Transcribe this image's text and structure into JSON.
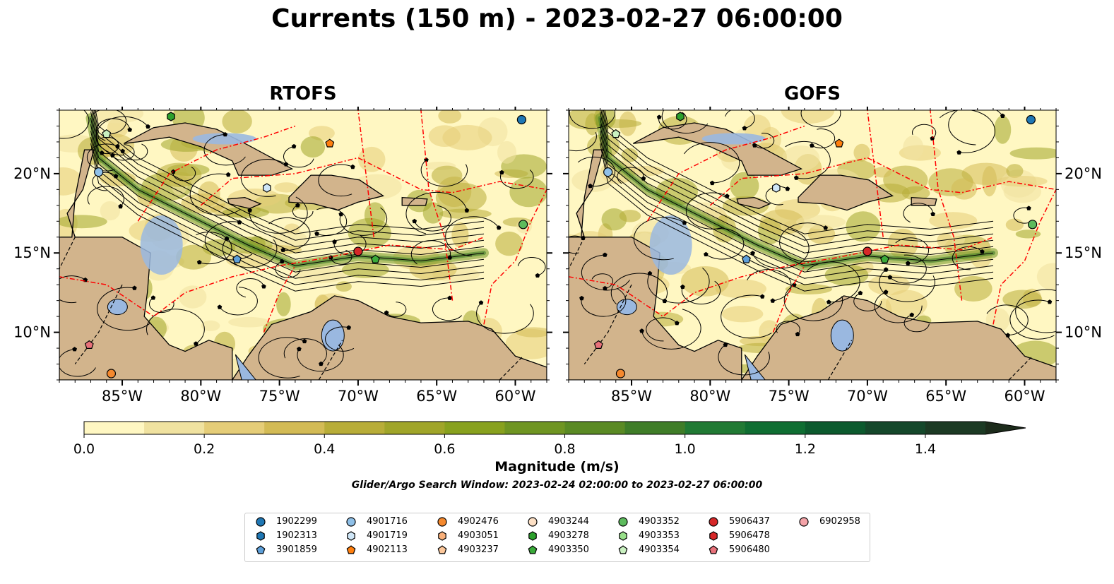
{
  "title": "Currents (150 m) - 2023-02-27 06:00:00",
  "panels": [
    {
      "title": "RTOFS",
      "lon_ticks": [
        "85°W",
        "80°W",
        "75°W",
        "70°W",
        "65°W",
        "60°W"
      ],
      "lat_ticks": [
        "20°N",
        "15°N",
        "10°N"
      ]
    },
    {
      "title": "GOFS",
      "lon_ticks": [
        "85°W",
        "80°W",
        "75°W",
        "70°W",
        "65°W",
        "60°W"
      ],
      "lat_ticks": [
        "20°N",
        "15°N",
        "10°N"
      ]
    }
  ],
  "colorbar": {
    "label": "Magnitude (m/s)",
    "ticks": [
      "0.0",
      "0.2",
      "0.4",
      "0.6",
      "0.8",
      "1.0",
      "1.2",
      "1.4"
    ],
    "colors": [
      "#fff7c2",
      "#f0e2a0",
      "#e5cd78",
      "#d3bb55",
      "#b8ad38",
      "#a0a529",
      "#88a11e",
      "#6f9522",
      "#5a8a24",
      "#3f7d28",
      "#217a34",
      "#0f6e32",
      "#0c5a2e",
      "#15482b",
      "#1c3a24",
      "#1c2b1b"
    ]
  },
  "search_window": "Glider/Argo Search Window: 2023-02-24 02:00:00 to 2023-02-27 06:00:00",
  "colors": {
    "land": "#d2b48c",
    "lake": "#9ab8e0",
    "current_low": "#fff7c2",
    "eez": "#ff0000"
  },
  "legend": [
    {
      "id": "1902299",
      "color": "#1f77b4",
      "marker": "circle"
    },
    {
      "id": "1902313",
      "color": "#1f77b4",
      "marker": "hexagon"
    },
    {
      "id": "3901859",
      "color": "#5d9fd9",
      "marker": "pentagon"
    },
    {
      "id": "4901716",
      "color": "#8fc0e8",
      "marker": "circle"
    },
    {
      "id": "4901719",
      "color": "#cfe6f7",
      "marker": "hexagon"
    },
    {
      "id": "4902113",
      "color": "#ff7f0e",
      "marker": "pentagon"
    },
    {
      "id": "4902476",
      "color": "#f5892e",
      "marker": "circle"
    },
    {
      "id": "4903051",
      "color": "#f9b07a",
      "marker": "hexagon"
    },
    {
      "id": "4903237",
      "color": "#fcc79a",
      "marker": "pentagon"
    },
    {
      "id": "4903244",
      "color": "#fde0c5",
      "marker": "circle"
    },
    {
      "id": "4903278",
      "color": "#2ca02c",
      "marker": "hexagon"
    },
    {
      "id": "4903350",
      "color": "#3aaa3a",
      "marker": "pentagon"
    },
    {
      "id": "4903352",
      "color": "#5dbb5d",
      "marker": "circle"
    },
    {
      "id": "4903353",
      "color": "#98df8a",
      "marker": "hexagon"
    },
    {
      "id": "4903354",
      "color": "#c9f0c0",
      "marker": "pentagon"
    },
    {
      "id": "5906437",
      "color": "#d62728",
      "marker": "circle"
    },
    {
      "id": "5906478",
      "color": "#d62728",
      "marker": "hexagon"
    },
    {
      "id": "5906480",
      "color": "#e8717a",
      "marker": "pentagon"
    },
    {
      "id": "6902958",
      "color": "#f4a3a8",
      "marker": "circle"
    }
  ],
  "chart_data": [
    {
      "type": "heatmap",
      "title": "RTOFS",
      "variable": "current magnitude at 150 m",
      "units": "m/s",
      "xlim": [
        -89,
        -58
      ],
      "ylim": [
        7,
        24
      ],
      "color_range": [
        0.0,
        1.5
      ],
      "floats": [
        {
          "id": "1902299",
          "lon": -59.6,
          "lat": 23.4
        },
        {
          "id": "3901859",
          "lon": -77.7,
          "lat": 14.6
        },
        {
          "id": "4901716",
          "lon": -86.5,
          "lat": 20.1
        },
        {
          "id": "4901719",
          "lon": -75.8,
          "lat": 19.1
        },
        {
          "id": "4902113",
          "lon": -71.8,
          "lat": 21.9
        },
        {
          "id": "4902476",
          "lon": -85.7,
          "lat": 7.4
        },
        {
          "id": "4903278",
          "lon": -81.9,
          "lat": 23.6
        },
        {
          "id": "4903350",
          "lon": -68.9,
          "lat": 14.6
        },
        {
          "id": "4903352",
          "lon": -59.5,
          "lat": 16.8
        },
        {
          "id": "4903354",
          "lon": -86.0,
          "lat": 22.5
        },
        {
          "id": "5906437",
          "lon": -70.0,
          "lat": 15.1
        },
        {
          "id": "5906480",
          "lon": -87.1,
          "lat": 9.2
        }
      ]
    },
    {
      "type": "heatmap",
      "title": "GOFS",
      "variable": "current magnitude at 150 m",
      "units": "m/s",
      "xlim": [
        -89,
        -58
      ],
      "ylim": [
        7,
        24
      ],
      "color_range": [
        0.0,
        1.5
      ],
      "floats": [
        {
          "id": "1902299",
          "lon": -59.6,
          "lat": 23.4
        },
        {
          "id": "3901859",
          "lon": -77.7,
          "lat": 14.6
        },
        {
          "id": "4901716",
          "lon": -86.5,
          "lat": 20.1
        },
        {
          "id": "4901719",
          "lon": -75.8,
          "lat": 19.1
        },
        {
          "id": "4902113",
          "lon": -71.8,
          "lat": 21.9
        },
        {
          "id": "4902476",
          "lon": -85.7,
          "lat": 7.4
        },
        {
          "id": "4903278",
          "lon": -81.9,
          "lat": 23.6
        },
        {
          "id": "4903350",
          "lon": -68.9,
          "lat": 14.6
        },
        {
          "id": "4903352",
          "lon": -59.5,
          "lat": 16.8
        },
        {
          "id": "4903354",
          "lon": -86.0,
          "lat": 22.5
        },
        {
          "id": "5906437",
          "lon": -70.0,
          "lat": 15.1
        },
        {
          "id": "5906480",
          "lon": -87.1,
          "lat": 9.2
        }
      ]
    }
  ]
}
